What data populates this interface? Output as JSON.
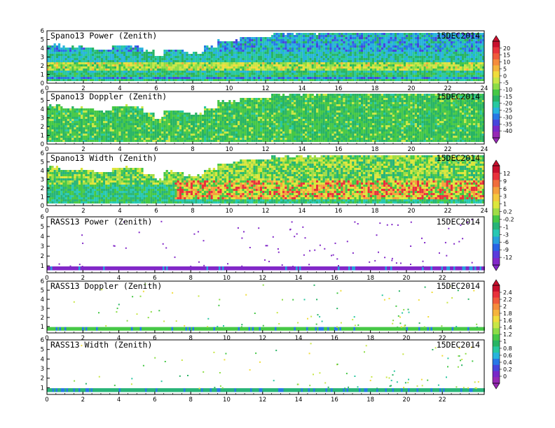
{
  "chart_data": [
    {
      "type": "heatmap",
      "title": "Spano13 Power (Zenith)",
      "date": "15DEC2014",
      "x_ticks": [
        "0",
        "2",
        "4",
        "6",
        "8",
        "10",
        "12",
        "14",
        "16",
        "18",
        "20",
        "22",
        "24"
      ],
      "y_ticks": [
        "0",
        "1",
        "2",
        "3",
        "4",
        "5",
        "6"
      ],
      "xlim": [
        0,
        24
      ],
      "ylim": [
        0,
        6
      ],
      "colorbar": "cb1",
      "data_top_km": [
        [
          0,
          4.6
        ],
        [
          0.7,
          4.3
        ],
        [
          2,
          4.2
        ],
        [
          2.5,
          3.9
        ],
        [
          3.5,
          4.5
        ],
        [
          4.5,
          4.4
        ],
        [
          5.2,
          3.8
        ],
        [
          5.8,
          3.1
        ],
        [
          6.3,
          4.0
        ],
        [
          7.4,
          3.6
        ],
        [
          8.6,
          4.3
        ],
        [
          9.3,
          5.0
        ],
        [
          10.5,
          5.4
        ],
        [
          12.2,
          5.8
        ],
        [
          15,
          6.0
        ],
        [
          20,
          5.9
        ],
        [
          24,
          5.8
        ]
      ]
    },
    {
      "type": "heatmap",
      "title": "Spano13 Doppler (Zenith)",
      "date": "15DEC2014",
      "x_ticks": [
        "0",
        "2",
        "4",
        "6",
        "8",
        "10",
        "12",
        "14",
        "16",
        "18",
        "20",
        "22",
        "24"
      ],
      "y_ticks": [
        "0",
        "1",
        "2",
        "3",
        "4",
        "5",
        "6"
      ],
      "xlim": [
        0,
        24
      ],
      "ylim": [
        0,
        6
      ],
      "colorbar": "cb1",
      "data_top_km": [
        [
          0,
          4.6
        ],
        [
          0.7,
          4.3
        ],
        [
          2,
          4.2
        ],
        [
          2.5,
          3.9
        ],
        [
          3.5,
          4.5
        ],
        [
          4.5,
          4.4
        ],
        [
          5.2,
          3.8
        ],
        [
          5.8,
          3.1
        ],
        [
          6.3,
          4.0
        ],
        [
          7.4,
          3.6
        ],
        [
          8.6,
          4.3
        ],
        [
          9.3,
          5.0
        ],
        [
          10.5,
          5.4
        ],
        [
          12.2,
          5.8
        ],
        [
          15,
          6.0
        ],
        [
          20,
          5.9
        ],
        [
          24,
          5.8
        ]
      ]
    },
    {
      "type": "heatmap",
      "title": "Spano13 Width (Zenith)",
      "date": "15DEC2014",
      "x_ticks": [
        "0",
        "2",
        "4",
        "6",
        "8",
        "10",
        "12",
        "14",
        "16",
        "18",
        "20",
        "22",
        "24"
      ],
      "y_ticks": [
        "0",
        "1",
        "2",
        "3",
        "4",
        "5",
        "6"
      ],
      "xlim": [
        0,
        24
      ],
      "ylim": [
        0,
        6
      ],
      "colorbar": "cb2",
      "data_top_km": [
        [
          0,
          4.6
        ],
        [
          0.7,
          4.3
        ],
        [
          2,
          4.2
        ],
        [
          2.5,
          3.9
        ],
        [
          3.5,
          4.5
        ],
        [
          4.5,
          4.4
        ],
        [
          5.2,
          3.8
        ],
        [
          5.8,
          3.1
        ],
        [
          6.3,
          4.0
        ],
        [
          7.4,
          3.6
        ],
        [
          8.6,
          4.3
        ],
        [
          9.3,
          5.0
        ],
        [
          10.5,
          5.4
        ],
        [
          12.2,
          5.8
        ],
        [
          15,
          6.0
        ],
        [
          20,
          5.9
        ],
        [
          24,
          5.8
        ]
      ]
    },
    {
      "type": "heatmap",
      "title": "RASS13 Power (Zenith)",
      "date": "15DEC2014",
      "x_ticks": [
        "0",
        "2",
        "4",
        "6",
        "8",
        "10",
        "12",
        "14",
        "16",
        "18",
        "20",
        "22"
      ],
      "y_ticks": [
        "1",
        "2",
        "3",
        "4",
        "5",
        "6"
      ],
      "xlim": [
        0,
        24
      ],
      "ylim": [
        0.3,
        6
      ],
      "colorbar": "cb2",
      "band_km": [
        0.55,
        0.95
      ]
    },
    {
      "type": "heatmap",
      "title": "RASS13 Doppler (Zenith)",
      "date": "15DEC2014",
      "x_ticks": [
        "0",
        "2",
        "4",
        "6",
        "8",
        "10",
        "12",
        "14",
        "16",
        "18",
        "20",
        "22"
      ],
      "y_ticks": [
        "1",
        "2",
        "3",
        "4",
        "5",
        "6"
      ],
      "xlim": [
        0,
        24
      ],
      "ylim": [
        0.3,
        6
      ],
      "colorbar": "cb3",
      "band_km": [
        0.55,
        0.95
      ]
    },
    {
      "type": "heatmap",
      "title": "RASS13 Width (Zenith)",
      "date": "15DEC2014",
      "x_ticks": [
        "0",
        "2",
        "4",
        "6",
        "8",
        "10",
        "12",
        "14",
        "16",
        "18",
        "20",
        "22"
      ],
      "y_ticks": [
        "1",
        "2",
        "3",
        "4",
        "5",
        "6"
      ],
      "xlim": [
        0,
        24
      ],
      "ylim": [
        0.3,
        6
      ],
      "colorbar": "cb3",
      "band_km": [
        0.55,
        0.95
      ]
    }
  ],
  "colorbars": {
    "cb1": {
      "labels": [
        "20",
        "15",
        "10",
        "5",
        "0",
        "-5",
        "-10",
        "-15",
        "-20",
        "-25",
        "-30",
        "-35",
        "-40"
      ],
      "colors": [
        "#c8102e",
        "#e8323c",
        "#f05a3c",
        "#f58c3c",
        "#f5b43c",
        "#f0dc3c",
        "#c8e646",
        "#8cdc46",
        "#46c846",
        "#28b464",
        "#28c8a0",
        "#28b4dc",
        "#2878e6",
        "#4646dc",
        "#7828c8",
        "#9628b4"
      ]
    },
    "cb2": {
      "labels": [
        "12",
        "9",
        "6",
        "3",
        "1",
        "0.2",
        "-0.2",
        "-1",
        "-3",
        "-6",
        "-9",
        "-12"
      ],
      "colors": [
        "#c8102e",
        "#e8323c",
        "#f06e3c",
        "#f5a03c",
        "#f5c83c",
        "#dce63c",
        "#a0dc46",
        "#46c846",
        "#28b478",
        "#28c8b4",
        "#28a0dc",
        "#2864e6",
        "#5a3cdc",
        "#8228c8"
      ]
    },
    "cb3": {
      "labels": [
        "2.4",
        "2.2",
        "2",
        "1.8",
        "1.6",
        "1.4",
        "1.2",
        "1",
        "0.8",
        "0.6",
        "0.4",
        "0.2",
        "0"
      ],
      "colors": [
        "#c8102e",
        "#e8323c",
        "#f05a3c",
        "#f58c3c",
        "#f5b43c",
        "#f0dc3c",
        "#c8e646",
        "#8cdc46",
        "#46c846",
        "#28b464",
        "#28c8a0",
        "#28b4dc",
        "#2878e6",
        "#4646dc",
        "#7828c8",
        "#9628b4"
      ]
    }
  }
}
